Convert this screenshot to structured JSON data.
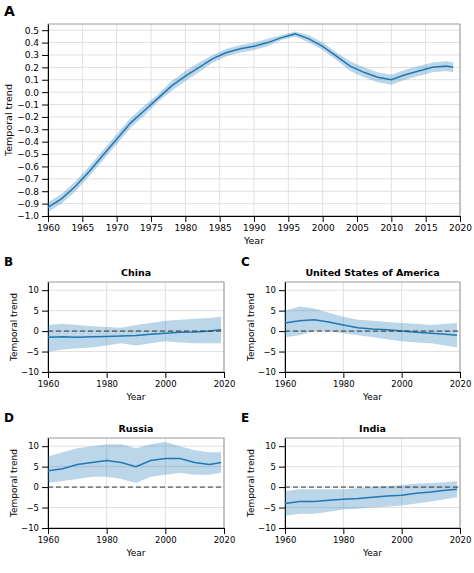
{
  "chart_data": [
    {
      "type": "line",
      "panel_label": "A",
      "x": [
        1960,
        1962,
        1964,
        1966,
        1968,
        1970,
        1972,
        1974,
        1976,
        1978,
        1980,
        1982,
        1984,
        1986,
        1988,
        1990,
        1992,
        1994,
        1996,
        1998,
        2000,
        2002,
        2004,
        2006,
        2008,
        2010,
        2012,
        2014,
        2016,
        2018,
        2019
      ],
      "series": [
        {
          "values": [
            -0.93,
            -0.86,
            -0.76,
            -0.64,
            -0.51,
            -0.38,
            -0.25,
            -0.15,
            -0.05,
            0.05,
            0.13,
            0.2,
            0.27,
            0.32,
            0.35,
            0.37,
            0.4,
            0.44,
            0.47,
            0.43,
            0.37,
            0.29,
            0.21,
            0.16,
            0.12,
            0.1,
            0.14,
            0.17,
            0.2,
            0.21,
            0.2
          ],
          "ci_lower": [
            -0.97,
            -0.9,
            -0.8,
            -0.68,
            -0.55,
            -0.42,
            -0.29,
            -0.19,
            -0.08,
            0.01,
            0.09,
            0.16,
            0.24,
            0.29,
            0.32,
            0.34,
            0.37,
            0.42,
            0.45,
            0.4,
            0.34,
            0.26,
            0.17,
            0.12,
            0.08,
            0.06,
            0.1,
            0.13,
            0.16,
            0.17,
            0.16
          ],
          "ci_upper": [
            -0.89,
            -0.82,
            -0.72,
            -0.6,
            -0.47,
            -0.34,
            -0.21,
            -0.11,
            -0.02,
            0.09,
            0.17,
            0.24,
            0.3,
            0.35,
            0.38,
            0.4,
            0.43,
            0.46,
            0.49,
            0.46,
            0.4,
            0.32,
            0.25,
            0.2,
            0.16,
            0.14,
            0.18,
            0.21,
            0.24,
            0.25,
            0.24
          ]
        }
      ],
      "xlabel": "Year",
      "ylabel": "Temporal trend",
      "xlim": [
        1960,
        2020
      ],
      "xticks": [
        1960,
        1965,
        1970,
        1975,
        1980,
        1985,
        1990,
        1995,
        2000,
        2005,
        2010,
        2015,
        2020
      ],
      "ylim": [
        -1.0,
        0.55
      ],
      "yticks": [
        {
          "value": -1.0,
          "label": "−1.0"
        },
        {
          "value": -0.9,
          "label": "−0.9"
        },
        {
          "value": -0.8,
          "label": "−0.8"
        },
        {
          "value": -0.7,
          "label": "−0.7"
        },
        {
          "value": -0.6,
          "label": "−0.6"
        },
        {
          "value": -0.5,
          "label": "−0.5"
        },
        {
          "value": -0.4,
          "label": "−0.4"
        },
        {
          "value": -0.3,
          "label": "−0.3"
        },
        {
          "value": -0.2,
          "label": "−0.2"
        },
        {
          "value": -0.1,
          "label": "−0.1"
        },
        {
          "value": 0.0,
          "label": "0.0"
        },
        0.1,
        0.2,
        0.3,
        0.4,
        0.5
      ],
      "grid": true
    },
    {
      "type": "line",
      "panel_label": "B",
      "title": "China",
      "x": [
        1960,
        1965,
        1970,
        1975,
        1980,
        1985,
        1990,
        1995,
        2000,
        2005,
        2010,
        2015,
        2019
      ],
      "series": [
        {
          "values": [
            -1.5,
            -1.4,
            -1.5,
            -1.4,
            -1.3,
            -1.2,
            -1.1,
            -0.8,
            -0.5,
            -0.3,
            -0.2,
            0.0,
            0.3
          ],
          "ci_lower": [
            -5.0,
            -4.5,
            -4.2,
            -4.0,
            -3.5,
            -3.0,
            -3.5,
            -3.0,
            -2.5,
            -2.8,
            -3.0,
            -3.0,
            -3.0
          ],
          "ci_upper": [
            1.5,
            1.8,
            1.5,
            1.2,
            1.0,
            0.8,
            1.5,
            2.0,
            2.5,
            2.8,
            3.0,
            3.2,
            3.5
          ]
        }
      ],
      "hlines": [
        {
          "value": 0,
          "line_style": "dashed"
        }
      ],
      "xlabel": "Year",
      "ylabel": "Temporal trend",
      "xlim": [
        1960,
        2020
      ],
      "xticks": [
        1960,
        1980,
        2000,
        2020
      ],
      "ylim": [
        -10,
        12
      ],
      "yticks": [
        {
          "value": -10,
          "label": "−10"
        },
        {
          "value": -5,
          "label": "−5"
        },
        0,
        5,
        10
      ],
      "grid": true
    },
    {
      "type": "line",
      "panel_label": "C",
      "title": "United States of America",
      "x": [
        1960,
        1965,
        1970,
        1975,
        1980,
        1985,
        1990,
        1995,
        2000,
        2005,
        2010,
        2015,
        2019
      ],
      "series": [
        {
          "values": [
            2.0,
            2.5,
            2.8,
            2.2,
            1.5,
            0.8,
            0.5,
            0.3,
            0.0,
            -0.3,
            -0.5,
            -0.8,
            -1.0
          ],
          "ci_lower": [
            -1.5,
            -1.0,
            0.0,
            0.0,
            -0.5,
            -1.0,
            -1.5,
            -2.0,
            -2.5,
            -2.8,
            -3.0,
            -3.5,
            -4.0
          ],
          "ci_upper": [
            5.0,
            6.0,
            5.5,
            4.5,
            3.5,
            2.8,
            2.5,
            2.2,
            2.0,
            1.8,
            1.5,
            1.8,
            2.0
          ]
        }
      ],
      "hlines": [
        {
          "value": 0,
          "line_style": "dashed"
        }
      ],
      "xlabel": "Year",
      "ylabel": "Temporal trend",
      "xlim": [
        1960,
        2020
      ],
      "xticks": [
        1960,
        1980,
        2000,
        2020
      ],
      "ylim": [
        -10,
        12
      ],
      "yticks": [
        {
          "value": -10,
          "label": "−10"
        },
        {
          "value": -5,
          "label": "−5"
        },
        0,
        5,
        10
      ],
      "grid": true
    },
    {
      "type": "line",
      "panel_label": "D",
      "title": "Russia",
      "x": [
        1960,
        1965,
        1970,
        1975,
        1980,
        1985,
        1990,
        1995,
        2000,
        2005,
        2010,
        2015,
        2019
      ],
      "series": [
        {
          "values": [
            4.0,
            4.5,
            5.5,
            6.0,
            6.5,
            6.0,
            5.0,
            6.5,
            7.0,
            7.0,
            6.0,
            5.5,
            6.0
          ],
          "ci_lower": [
            1.0,
            1.5,
            2.0,
            2.5,
            2.5,
            2.0,
            1.0,
            2.5,
            3.0,
            3.5,
            3.0,
            3.0,
            3.5
          ],
          "ci_upper": [
            7.5,
            8.5,
            9.5,
            10.0,
            10.5,
            10.5,
            9.5,
            10.5,
            11.0,
            10.0,
            9.0,
            8.5,
            8.5
          ]
        }
      ],
      "hlines": [
        {
          "value": 0,
          "line_style": "dashed"
        }
      ],
      "xlabel": "Year",
      "ylabel": "Temporal trend",
      "xlim": [
        1960,
        2020
      ],
      "xticks": [
        1960,
        1980,
        2000,
        2020
      ],
      "ylim": [
        -10,
        12
      ],
      "yticks": [
        {
          "value": -10,
          "label": "−10"
        },
        {
          "value": -5,
          "label": "−5"
        },
        0,
        5,
        10
      ],
      "grid": true
    },
    {
      "type": "line",
      "panel_label": "E",
      "title": "India",
      "x": [
        1960,
        1965,
        1970,
        1975,
        1980,
        1985,
        1990,
        1995,
        2000,
        2005,
        2010,
        2015,
        2019
      ],
      "series": [
        {
          "values": [
            -4.0,
            -3.5,
            -3.5,
            -3.2,
            -3.0,
            -2.8,
            -2.5,
            -2.2,
            -2.0,
            -1.5,
            -1.2,
            -0.8,
            -0.5
          ],
          "ci_lower": [
            -7.0,
            -6.5,
            -6.5,
            -6.0,
            -5.5,
            -5.3,
            -5.0,
            -4.8,
            -4.5,
            -4.0,
            -3.5,
            -3.0,
            -2.5
          ],
          "ci_upper": [
            -1.0,
            -0.5,
            -0.5,
            -0.5,
            -0.5,
            -0.3,
            0.0,
            0.2,
            0.5,
            0.8,
            1.0,
            1.2,
            1.5
          ]
        }
      ],
      "hlines": [
        {
          "value": 0,
          "line_style": "dashed"
        }
      ],
      "xlabel": "Year",
      "ylabel": "Temporal trend",
      "xlim": [
        1960,
        2020
      ],
      "xticks": [
        1960,
        1980,
        2000,
        2020
      ],
      "ylim": [
        -10,
        12
      ],
      "yticks": [
        {
          "value": -10,
          "label": "−10"
        },
        {
          "value": -5,
          "label": "−5"
        },
        0,
        5,
        10
      ],
      "grid": true
    }
  ]
}
